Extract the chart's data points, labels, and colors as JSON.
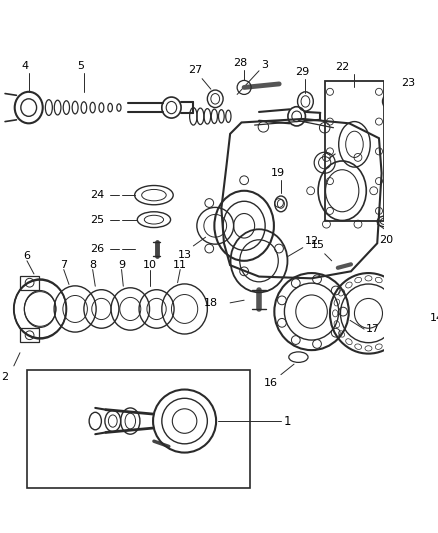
{
  "bg_color": "#ffffff",
  "line_color": "#2a2a2a",
  "label_color": "#000000",
  "fig_width": 4.38,
  "fig_height": 5.33,
  "dpi": 100
}
